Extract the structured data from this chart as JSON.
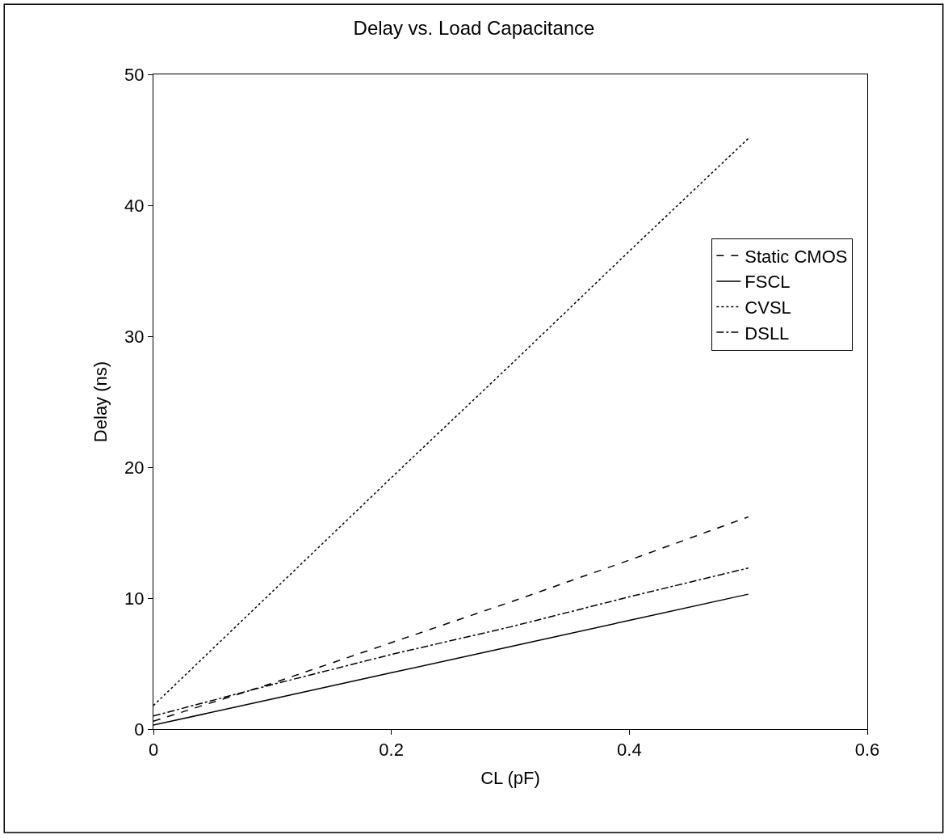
{
  "chart_data": {
    "type": "line",
    "title": "Delay vs. Load Capacitance",
    "xlabel": "CL (pF)",
    "ylabel": "Delay (ns)",
    "x": [
      0,
      0.1,
      0.2,
      0.3,
      0.4,
      0.5
    ],
    "series": [
      {
        "name": "Static CMOS",
        "color": "#000000",
        "line_style": "dashed",
        "values": [
          0.6,
          3.5,
          6.6,
          9.7,
          12.9,
          16.2
        ]
      },
      {
        "name": "FSCL",
        "color": "#000000",
        "line_style": "solid",
        "values": [
          0.3,
          2.3,
          4.3,
          6.3,
          8.3,
          10.3
        ]
      },
      {
        "name": "CVSL",
        "color": "#000000",
        "line_style": "dotted",
        "values": [
          1.8,
          10.5,
          19.2,
          27.8,
          36.5,
          45.1
        ]
      },
      {
        "name": "DSLL",
        "color": "#000000",
        "line_style": "dashdot",
        "values": [
          1.0,
          3.4,
          5.7,
          7.8,
          10.1,
          12.3
        ]
      }
    ],
    "xlim": [
      0,
      0.6
    ],
    "xticks": [
      0,
      0.2,
      0.4,
      0.6
    ],
    "ylim": [
      0,
      50
    ],
    "yticks": [
      0,
      10,
      20,
      30,
      40,
      50
    ],
    "legend": "top right",
    "marker": "none"
  }
}
